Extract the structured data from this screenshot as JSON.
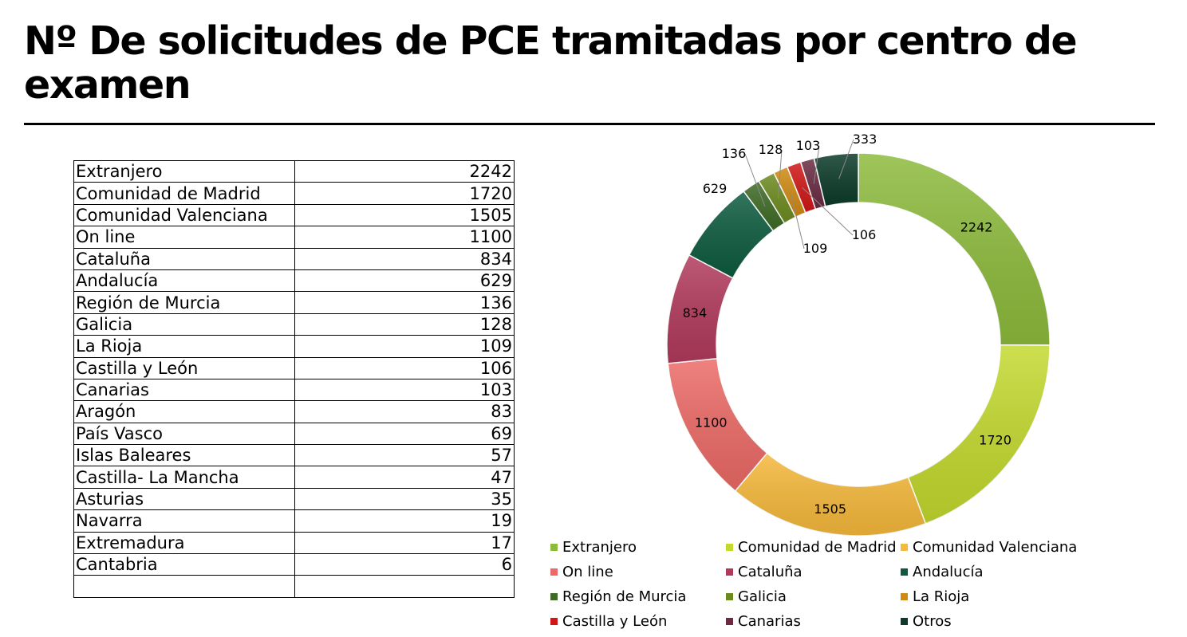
{
  "title": "Nº De solicitudes de PCE tramitadas por centro de examen",
  "table": {
    "rows": [
      {
        "name": "Extranjero",
        "value": "2242"
      },
      {
        "name": "Comunidad de Madrid",
        "value": "1720"
      },
      {
        "name": "Comunidad Valenciana",
        "value": "1505"
      },
      {
        "name": "On line",
        "value": "1100"
      },
      {
        "name": "Cataluña",
        "value": "834"
      },
      {
        "name": "Andalucía",
        "value": "629"
      },
      {
        "name": "Región de Murcia",
        "value": "136"
      },
      {
        "name": "Galicia",
        "value": "128"
      },
      {
        "name": "La Rioja",
        "value": "109"
      },
      {
        "name": "Castilla y León",
        "value": "106"
      },
      {
        "name": "Canarias",
        "value": "103"
      },
      {
        "name": "Aragón",
        "value": "83"
      },
      {
        "name": "País Vasco",
        "value": "69"
      },
      {
        "name": "Islas Baleares",
        "value": "57"
      },
      {
        "name": "Castilla- La Mancha",
        "value": "47"
      },
      {
        "name": "Asturias",
        "value": "35"
      },
      {
        "name": "Navarra",
        "value": "19"
      },
      {
        "name": "Extremadura",
        "value": "17"
      },
      {
        "name": "Cantabria",
        "value": "6"
      },
      {
        "name": "",
        "value": ""
      }
    ]
  },
  "chart_data": {
    "type": "pie",
    "variant": "donut",
    "title": "",
    "categories": [
      "Extranjero",
      "Comunidad de Madrid",
      "Comunidad Valenciana",
      "On line",
      "Cataluña",
      "Andalucía",
      "Región de Murcia",
      "Galicia",
      "La Rioja",
      "Castilla y León",
      "Canarias",
      "Otros"
    ],
    "values": [
      2242,
      1720,
      1505,
      1100,
      834,
      629,
      136,
      128,
      109,
      106,
      103,
      333
    ],
    "colors": [
      "#8dbb3c",
      "#c3d92e",
      "#f6b93b",
      "#ec6a66",
      "#b13a5c",
      "#0d5b3f",
      "#3f6b26",
      "#6c8b1f",
      "#d08a12",
      "#d01717",
      "#6b2c43",
      "#0c3b2a"
    ],
    "data_labels": true,
    "legend_position": "bottom"
  }
}
